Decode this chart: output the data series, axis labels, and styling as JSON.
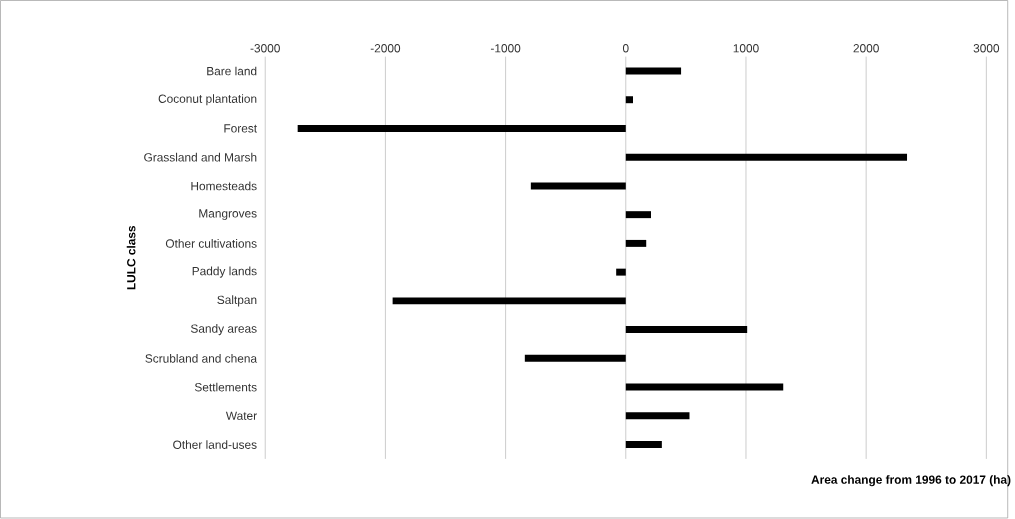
{
  "chart_data": {
    "type": "bar",
    "orientation": "horizontal",
    "categories": [
      "Bare land",
      "Coconut plantation",
      "Forest",
      "Grassland and Marsh",
      "Homesteads",
      "Mangroves",
      "Other cultivations",
      "Paddy lands",
      "Saltpan",
      "Sandy areas",
      "Scrubland and chena",
      "Settlements",
      "Water",
      "Other land-uses"
    ],
    "values": [
      460,
      60,
      -2730,
      2340,
      -790,
      210,
      170,
      -80,
      -1940,
      1010,
      -840,
      1310,
      530,
      300
    ],
    "color": "#000000",
    "xlim": [
      -3000,
      3000
    ],
    "xticks": [
      -3000,
      -2000,
      -1000,
      0,
      1000,
      2000,
      3000
    ],
    "xlabel": "Area change from 1996 to 2017 (ha)",
    "ylabel": "LULC class",
    "grid": "x"
  }
}
